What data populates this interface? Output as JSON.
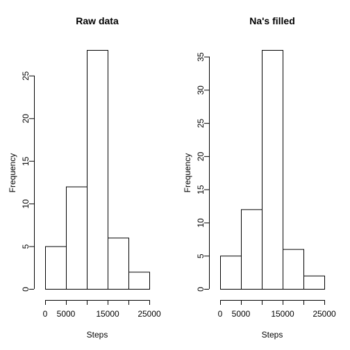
{
  "chart_data": [
    {
      "type": "bar",
      "title": "Raw data",
      "xlabel": "Steps",
      "ylabel": "Frequency",
      "bins": [
        [
          0,
          5000
        ],
        [
          5000,
          10000
        ],
        [
          10000,
          15000
        ],
        [
          15000,
          20000
        ],
        [
          20000,
          25000
        ]
      ],
      "values": [
        5,
        12,
        28,
        6,
        2
      ],
      "xlim": [
        0,
        25000
      ],
      "ylim": [
        0,
        28
      ],
      "x_ticks": [
        0,
        5000,
        10000,
        15000,
        20000,
        25000
      ],
      "x_tick_labels": [
        "0",
        "5000",
        "",
        "15000",
        "",
        "25000"
      ],
      "y_ticks": [
        0,
        5,
        10,
        15,
        20,
        25
      ],
      "y_tick_labels": [
        "0",
        "5",
        "10",
        "15",
        "20",
        "25"
      ],
      "grid": false,
      "legend": "none"
    },
    {
      "type": "bar",
      "title": "Na's filled",
      "xlabel": "Steps",
      "ylabel": "Frequency",
      "bins": [
        [
          0,
          5000
        ],
        [
          5000,
          10000
        ],
        [
          10000,
          15000
        ],
        [
          15000,
          20000
        ],
        [
          20000,
          25000
        ]
      ],
      "values": [
        5,
        12,
        36,
        6,
        2
      ],
      "xlim": [
        0,
        25000
      ],
      "ylim": [
        0,
        36
      ],
      "x_ticks": [
        0,
        5000,
        10000,
        15000,
        20000,
        25000
      ],
      "x_tick_labels": [
        "0",
        "5000",
        "",
        "15000",
        "",
        "25000"
      ],
      "y_ticks": [
        0,
        5,
        10,
        15,
        20,
        25,
        30,
        35
      ],
      "y_tick_labels": [
        "0",
        "5",
        "10",
        "15",
        "20",
        "25",
        "30",
        "35"
      ],
      "grid": false,
      "legend": "none"
    }
  ]
}
